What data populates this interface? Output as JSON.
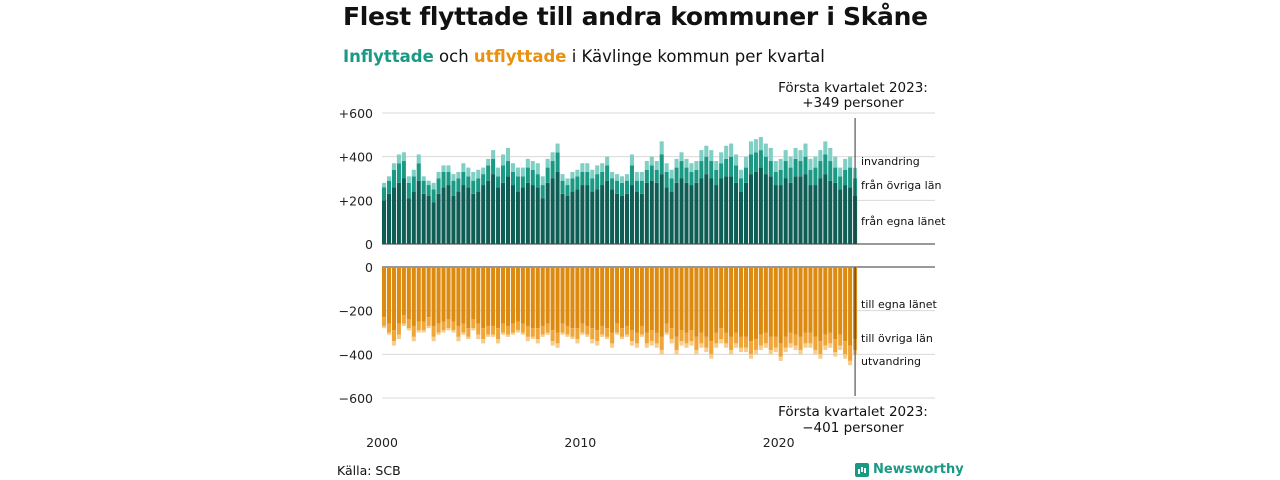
{
  "title": "Flest flyttade till andra kommuner i Skåne",
  "subtitle": {
    "part_in": "Inflyttade",
    "part_and": " och ",
    "part_out": "utflyttade",
    "part_rest": " i Kävlinge kommun per kvartal"
  },
  "source": "Källa: SCB",
  "brand": "Newsworthy",
  "colors": {
    "in_own": "#0f5e55",
    "in_other": "#1a9985",
    "in_imm": "#7fcfc4",
    "out_own": "#dc8a10",
    "out_other": "#f0a538",
    "out_emi": "#f8cc8a"
  },
  "chart_data": [
    {
      "type": "bar",
      "stacked": true,
      "title": "Inflyttade",
      "x_start": "2000 Q1",
      "xticks": [
        "2000",
        "2010",
        "2020"
      ],
      "yticks": [
        "0",
        "+200",
        "+400",
        "+600"
      ],
      "ylim": [
        0,
        600
      ],
      "grid": true,
      "annotation": {
        "line1": "Första kvartalet 2023:",
        "line2": "+349 personer"
      },
      "series_labels": [
        "från egna länet",
        "från övriga län",
        "invandring"
      ],
      "own": [
        200,
        230,
        260,
        280,
        300,
        210,
        240,
        290,
        230,
        220,
        190,
        230,
        260,
        270,
        220,
        240,
        270,
        260,
        230,
        240,
        270,
        290,
        320,
        260,
        280,
        310,
        270,
        240,
        260,
        280,
        270,
        260,
        210,
        280,
        300,
        330,
        230,
        220,
        240,
        250,
        270,
        270,
        240,
        250,
        270,
        290,
        250,
        230,
        220,
        230,
        270,
        240,
        230,
        280,
        290,
        280,
        320,
        260,
        240,
        280,
        300,
        280,
        270,
        280,
        300,
        320,
        300,
        270,
        300,
        310,
        310,
        280,
        240,
        280,
        320,
        330,
        350,
        320,
        310,
        270,
        270,
        300,
        280,
        310,
        310,
        320,
        270,
        270,
        300,
        320,
        290,
        280,
        250,
        270,
        260,
        220
      ],
      "other": [
        60,
        60,
        80,
        90,
        80,
        70,
        70,
        80,
        60,
        50,
        60,
        70,
        70,
        60,
        70,
        60,
        60,
        50,
        60,
        60,
        50,
        70,
        70,
        50,
        80,
        70,
        60,
        70,
        50,
        70,
        70,
        60,
        60,
        70,
        80,
        90,
        60,
        50,
        60,
        60,
        60,
        60,
        60,
        70,
        60,
        70,
        50,
        60,
        60,
        60,
        90,
        50,
        60,
        60,
        70,
        60,
        90,
        70,
        60,
        70,
        80,
        70,
        60,
        60,
        80,
        80,
        80,
        70,
        70,
        80,
        90,
        80,
        60,
        70,
        90,
        90,
        80,
        80,
        70,
        60,
        70,
        80,
        70,
        80,
        70,
        80,
        70,
        80,
        80,
        90,
        90,
        70,
        60,
        70,
        90,
        80
      ],
      "imm": [
        20,
        20,
        30,
        40,
        40,
        30,
        30,
        40,
        20,
        20,
        30,
        30,
        30,
        30,
        30,
        30,
        40,
        40,
        40,
        40,
        30,
        30,
        40,
        40,
        50,
        60,
        40,
        40,
        40,
        40,
        40,
        50,
        40,
        40,
        40,
        40,
        30,
        30,
        30,
        30,
        40,
        40,
        40,
        40,
        40,
        40,
        30,
        30,
        30,
        30,
        50,
        40,
        40,
        40,
        40,
        40,
        60,
        40,
        40,
        40,
        40,
        40,
        40,
        40,
        50,
        50,
        50,
        40,
        50,
        60,
        60,
        50,
        40,
        50,
        60,
        60,
        60,
        60,
        60,
        50,
        50,
        50,
        50,
        50,
        50,
        60,
        50,
        50,
        50,
        60,
        60,
        50,
        40,
        50,
        50,
        49
      ]
    },
    {
      "type": "bar",
      "stacked": true,
      "title": "Utflyttade",
      "x_start": "2000 Q1",
      "xticks": [
        "2000",
        "2010",
        "2020"
      ],
      "yticks": [
        "0",
        "−200",
        "−400",
        "−600"
      ],
      "ylim": [
        -600,
        0
      ],
      "grid": true,
      "annotation": {
        "line1": "Första kvartalet 2023:",
        "line2": "−401 personer"
      },
      "series_labels": [
        "till egna länet",
        "till övriga län",
        "utvandring"
      ],
      "own": [
        230,
        260,
        290,
        260,
        220,
        240,
        270,
        250,
        250,
        230,
        270,
        260,
        250,
        240,
        250,
        270,
        260,
        280,
        240,
        260,
        280,
        270,
        270,
        280,
        260,
        270,
        260,
        250,
        260,
        270,
        280,
        280,
        270,
        260,
        290,
        300,
        260,
        270,
        280,
        280,
        260,
        270,
        280,
        290,
        270,
        280,
        300,
        260,
        280,
        270,
        290,
        300,
        270,
        300,
        290,
        300,
        320,
        260,
        280,
        320,
        290,
        300,
        290,
        320,
        300,
        320,
        340,
        300,
        280,
        300,
        320,
        300,
        320,
        320,
        340,
        330,
        310,
        300,
        320,
        320,
        350,
        320,
        300,
        310,
        320,
        300,
        300,
        320,
        340,
        310,
        300,
        330,
        310,
        340,
        360,
        331
      ],
      "other": [
        40,
        40,
        50,
        50,
        40,
        40,
        50,
        40,
        40,
        40,
        50,
        40,
        40,
        40,
        40,
        50,
        40,
        40,
        40,
        50,
        50,
        40,
        40,
        50,
        40,
        40,
        40,
        40,
        40,
        50,
        40,
        50,
        40,
        40,
        50,
        50,
        40,
        40,
        40,
        50,
        40,
        40,
        50,
        50,
        40,
        40,
        50,
        40,
        40,
        40,
        50,
        50,
        40,
        50,
        50,
        50,
        60,
        40,
        50,
        60,
        50,
        50,
        50,
        60,
        50,
        50,
        60,
        50,
        50,
        50,
        60,
        50,
        50,
        50,
        60,
        50,
        50,
        50,
        60,
        50,
        60,
        50,
        50,
        50,
        60,
        50,
        50,
        60,
        60,
        50,
        50,
        60,
        50,
        60,
        70,
        50
      ],
      "emi": [
        10,
        10,
        20,
        20,
        10,
        10,
        20,
        10,
        10,
        10,
        20,
        10,
        10,
        10,
        10,
        20,
        10,
        10,
        10,
        20,
        20,
        10,
        10,
        20,
        10,
        10,
        10,
        10,
        10,
        20,
        10,
        20,
        10,
        10,
        20,
        20,
        10,
        10,
        10,
        20,
        10,
        10,
        20,
        20,
        10,
        10,
        20,
        10,
        10,
        10,
        20,
        20,
        10,
        20,
        20,
        20,
        20,
        10,
        20,
        20,
        20,
        20,
        20,
        20,
        20,
        20,
        20,
        20,
        20,
        20,
        20,
        20,
        20,
        20,
        20,
        20,
        20,
        20,
        20,
        20,
        20,
        20,
        20,
        20,
        20,
        20,
        20,
        20,
        20,
        20,
        20,
        20,
        20,
        20,
        20,
        20
      ]
    }
  ]
}
